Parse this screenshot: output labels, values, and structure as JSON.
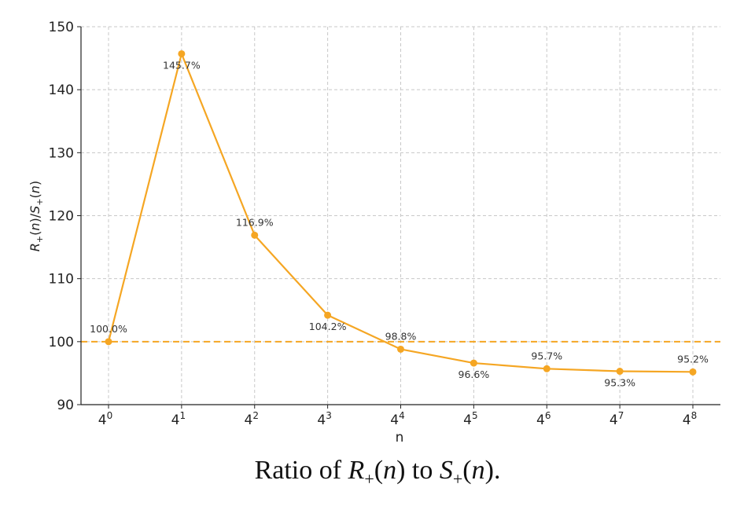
{
  "chart_data": {
    "type": "line",
    "x": [
      0,
      1,
      2,
      3,
      4,
      5,
      6,
      7,
      8
    ],
    "tick_base": "4",
    "tick_exponents": [
      "0",
      "1",
      "2",
      "3",
      "4",
      "5",
      "6",
      "7",
      "8"
    ],
    "values": [
      100.0,
      145.7,
      116.9,
      104.2,
      98.8,
      96.6,
      95.7,
      95.3,
      95.2
    ],
    "data_labels": [
      "100.0%",
      "145.7%",
      "116.9%",
      "104.2%",
      "98.8%",
      "96.6%",
      "95.7%",
      "95.3%",
      "95.2%"
    ],
    "xlabel": "n",
    "ylabel": "R+(n)/S+(n)",
    "ylim": [
      90,
      150
    ],
    "yticks": [
      90,
      100,
      110,
      120,
      130,
      140,
      150
    ],
    "reference_line": 100,
    "grid": true,
    "line_color": "#f5a623",
    "reference_color": "#f5a623"
  },
  "caption": {
    "prefix": "Ratio of ",
    "r": "R",
    "plus": "+",
    "n": "n",
    "middle": " to ",
    "s": "S",
    "end": "."
  }
}
